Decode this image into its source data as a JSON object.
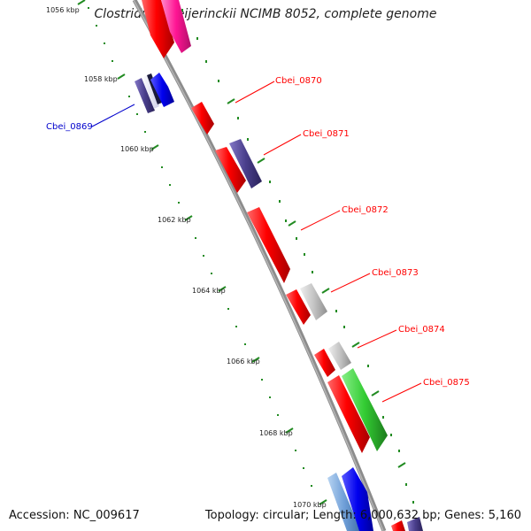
{
  "title": "Clostridium beijerinckii NCIMB 8052, complete genome",
  "accession": "Accession: NC_009617",
  "summary": "Topology: circular; Length: 6,000,632 bp; Genes: 5,160",
  "kbp_labels": [
    "1056 kbp",
    "1058 kbp",
    "1060 kbp",
    "1062 kbp",
    "1064 kbp",
    "1066 kbp",
    "1068 kbp",
    "1070 kbp"
  ],
  "genes": [
    {
      "name": "Cbei_0869",
      "color": "#0000cc"
    },
    {
      "name": "Cbei_0870",
      "color": "#ff0000"
    },
    {
      "name": "Cbei_0871",
      "color": "#ff0000"
    },
    {
      "name": "Cbei_0872",
      "color": "#ff0000"
    },
    {
      "name": "Cbei_0873",
      "color": "#ff0000"
    },
    {
      "name": "Cbei_0874",
      "color": "#ff0000"
    },
    {
      "name": "Cbei_0875",
      "color": "#ff0000"
    }
  ],
  "colors": {
    "backbone": "#8c8c8c",
    "tick_dots": "#228b22",
    "cds_red": "#ff0000",
    "cds_blue": "#0000ee",
    "cds_navy": "#4a3f8c",
    "cds_grey": "#bdbdbd",
    "cds_green": "#33cc33",
    "cds_pink": "#ff1493",
    "cds_lightblue": "#6f9fd8"
  }
}
